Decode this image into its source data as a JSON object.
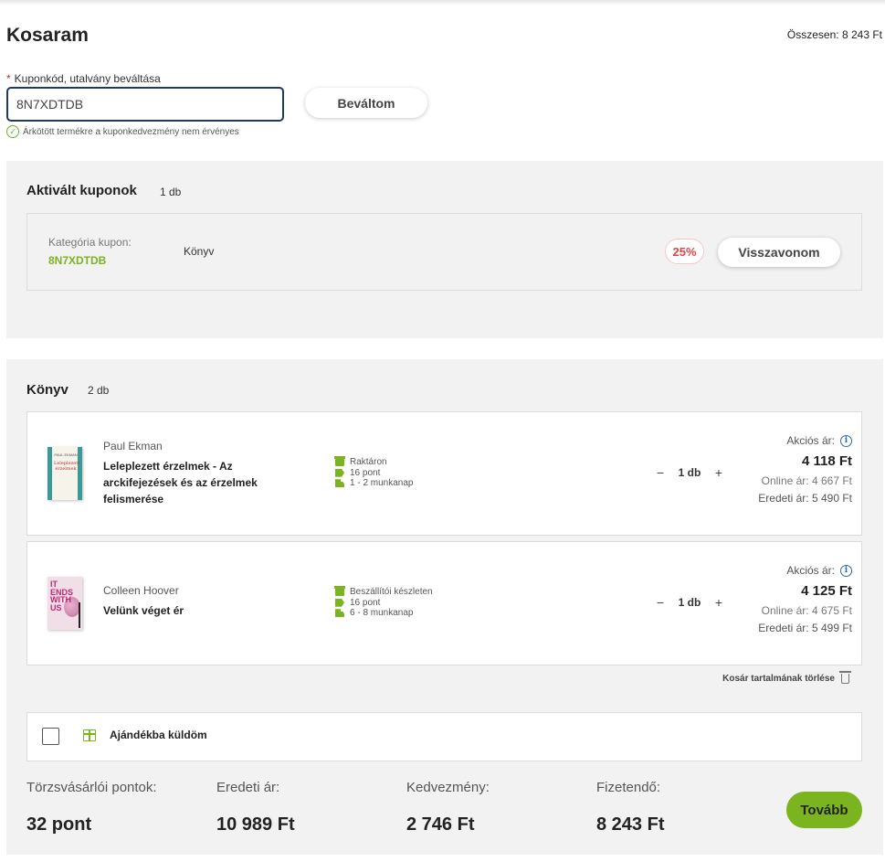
{
  "page": {
    "title": "Kosaram",
    "total_label": "Összesen:",
    "total_value": "8 243 Ft"
  },
  "coupon_form": {
    "required_mark": "*",
    "label": "Kuponkód, utalvány beváltása",
    "input_value": "8N7XDTDB",
    "redeem_label": "Beváltom",
    "message": "Árkötött termékre a kuponkedvezmény nem érvényes"
  },
  "activated": {
    "title": "Aktivált kuponok",
    "count": "1 db",
    "coupon": {
      "type_label": "Kategória kupon:",
      "code": "8N7XDTDB",
      "category": "Könyv",
      "discount": "25%",
      "revoke_label": "Visszavonom"
    }
  },
  "cart": {
    "title": "Könyv",
    "count": "2 db",
    "items": [
      {
        "author": "Paul Ekman",
        "title": "Leleplezett érzelmek - Az arckifejezések és az érzelmek felismerése",
        "cover_author": "PAUL EKMAN",
        "cover_title": "Leleplezett érzelmek",
        "stock": "Raktáron",
        "points": "16 pont",
        "delivery": "1 - 2 munkanap",
        "qty": "1 db",
        "sale_label": "Akciós ár:",
        "sale_price": "4 118 Ft",
        "online_price": "Online ár: 4 667 Ft",
        "original_price": "Eredeti ár: 5 490 Ft"
      },
      {
        "author": "Colleen Hoover",
        "title": "Velünk véget ér",
        "cover_title": "IT ENDS WITH US",
        "stock": "Beszállítói készleten",
        "points": "16 pont",
        "delivery": "6 - 8 munkanap",
        "qty": "1 db",
        "sale_label": "Akciós ár:",
        "sale_price": "4 125 Ft",
        "online_price": "Online ár: 4 675 Ft",
        "original_price": "Eredeti ár: 5 499 Ft"
      }
    ],
    "clear_label": "Kosár tartalmának törlése",
    "gift_label": "Ajándékba küldöm"
  },
  "summary": {
    "points_label": "Törzsvásárlói pontok:",
    "points_value": "32 pont",
    "original_label": "Eredeti ár:",
    "original_value": "10 989 Ft",
    "discount_label": "Kedvezmény:",
    "discount_value": "2 746 Ft",
    "payable_label": "Fizetendő:",
    "payable_value": "8 243 Ft",
    "next_label": "Tovább"
  },
  "colors": {
    "accent_green": "#7ab51f",
    "discount_red": "#e04545",
    "input_border": "#1d3a5f"
  },
  "icons": [
    "check-icon",
    "info-icon",
    "store-icon",
    "tag-icon",
    "truck-icon",
    "trash-icon",
    "gift-icon"
  ]
}
